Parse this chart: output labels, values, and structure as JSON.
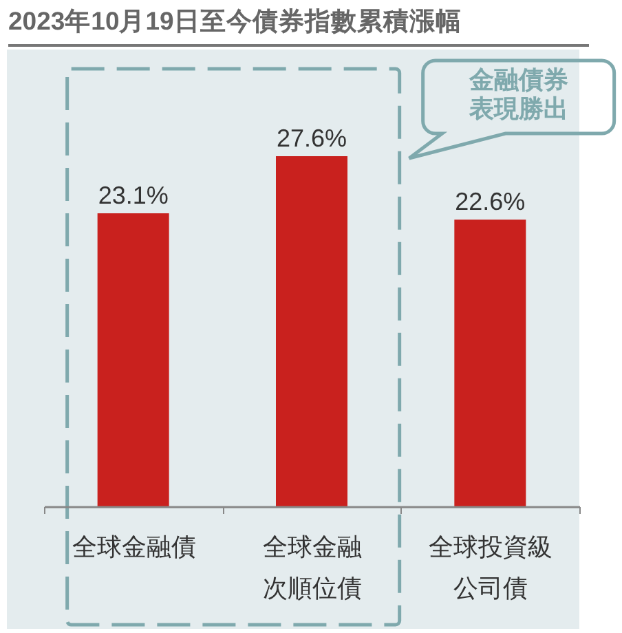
{
  "chart_data": {
    "type": "bar",
    "title": "2023年10月19日至今債券指數累積漲幅",
    "categories": [
      "全球金融債",
      "全球金融次順位債",
      "全球投資級公司債"
    ],
    "values": [
      23.1,
      27.6,
      22.6
    ],
    "value_labels": [
      "23.1%",
      "27.6%",
      "22.6%"
    ],
    "color": "#c9211e",
    "ylim": [
      0,
      36
    ],
    "tick_labels": "x",
    "annotations": [
      "金融債券表現勝出"
    ]
  }
}
